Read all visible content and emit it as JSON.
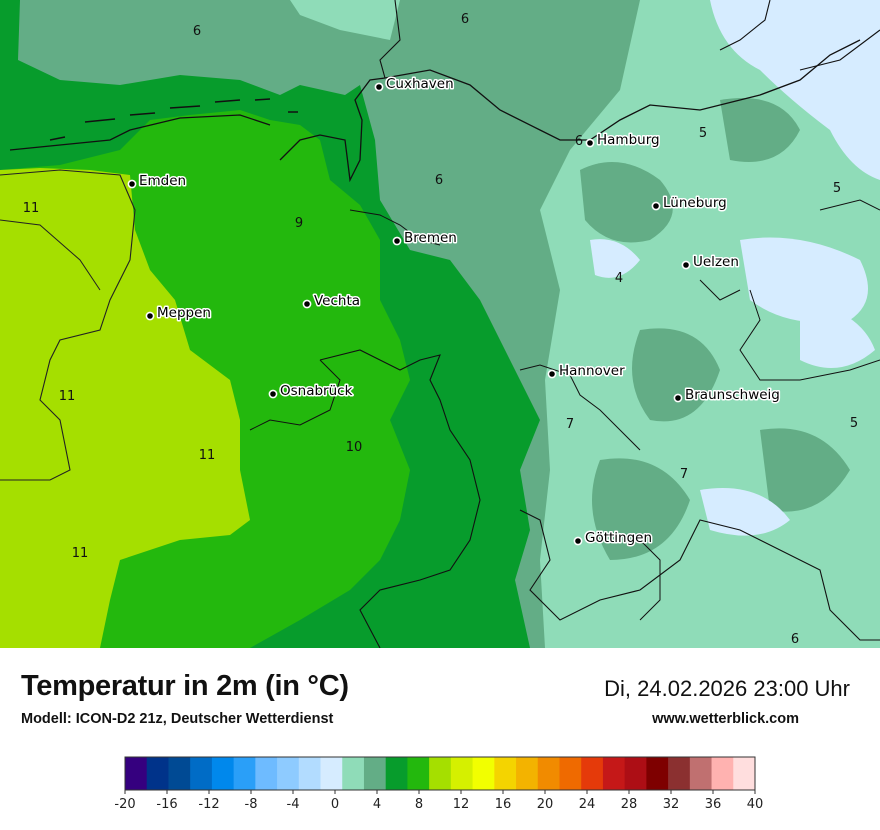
{
  "cities": [
    {
      "name": "Cuxhaven"
    },
    {
      "name": "Hamburg"
    },
    {
      "name": "Emden"
    },
    {
      "name": "Lüneburg"
    },
    {
      "name": "Bremen"
    },
    {
      "name": "Uelzen"
    },
    {
      "name": "Vechta"
    },
    {
      "name": "Meppen"
    },
    {
      "name": "Hannover"
    },
    {
      "name": "Osnabrück"
    },
    {
      "name": "Braunschweig"
    },
    {
      "name": "Göttingen"
    }
  ],
  "isoline_labels": [
    "6",
    "6",
    "6",
    "6",
    "5",
    "5",
    "5",
    "4",
    "9",
    "11",
    "11",
    "11",
    "11",
    "10",
    "7",
    "7",
    "6"
  ],
  "footer": {
    "title": "Temperatur in 2m (in °C)",
    "model": "Modell: ICON-D2 21z, Deutscher Wetterdienst",
    "datetime": "Di, 24.02.2026 23:00 Uhr",
    "website": "www.wetterblick.com"
  },
  "legend": {
    "colors": [
      "#35007f",
      "#00338a",
      "#004a94",
      "#006cc6",
      "#0088ec",
      "#2a9ff8",
      "#6ebbff",
      "#8ecbff",
      "#b2dcff",
      "#d6ecff",
      "#8fdcb8",
      "#63ad86",
      "#079c2c",
      "#23b80d",
      "#a5df00",
      "#d5f000",
      "#f2ff00",
      "#f4d400",
      "#f3b300",
      "#f18b00",
      "#ef6a00",
      "#e53a0a",
      "#c51818",
      "#ad0e15",
      "#7e0000",
      "#8b3030",
      "#c07070",
      "#ffb2b0",
      "#ffdede"
    ],
    "ticks": [
      "-20",
      "-16",
      "-12",
      "-8",
      "-4",
      "0",
      "4",
      "8",
      "12",
      "16",
      "20",
      "24",
      "28",
      "32",
      "36",
      "40"
    ]
  }
}
